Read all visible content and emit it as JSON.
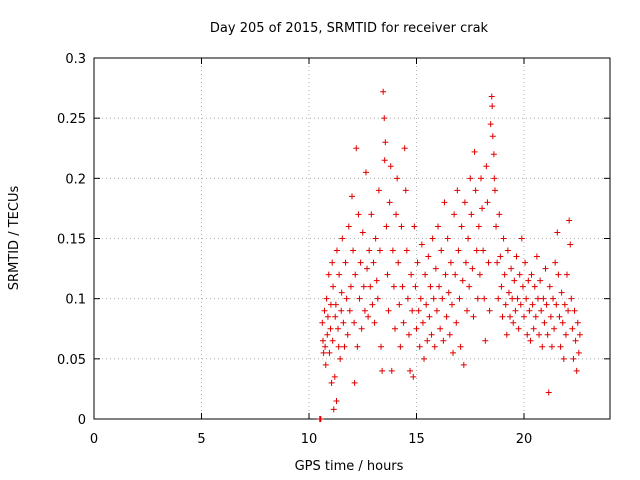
{
  "chart_data": {
    "type": "scatter",
    "title": "Day 205 of 2015, SRMTID for receiver crak",
    "xlabel": "GPS time / hours",
    "ylabel": "SRMTID / TECUs",
    "xlim": [
      0,
      24
    ],
    "ylim": [
      0,
      0.3
    ],
    "xticks": [
      0,
      5,
      10,
      15,
      20
    ],
    "yticks": [
      0,
      0.05,
      0.1,
      0.15,
      0.2,
      0.25,
      0.3
    ],
    "xtick_labels": [
      "0",
      "5",
      "10",
      "15",
      "20"
    ],
    "ytick_labels": [
      "0",
      "0.05",
      "0.1",
      "0.15",
      "0.2",
      "0.25",
      "0.3"
    ],
    "grid": true,
    "marker": "+",
    "color": "#e00000",
    "series": [
      {
        "points": [
          [
            10.5,
            0.0
          ],
          [
            10.52,
            0.0
          ],
          [
            10.55,
            0.0
          ],
          [
            10.62,
            0.08
          ],
          [
            10.65,
            0.065
          ],
          [
            10.68,
            0.055
          ],
          [
            10.72,
            0.09
          ],
          [
            10.75,
            0.06
          ],
          [
            10.78,
            0.045
          ],
          [
            10.82,
            0.1
          ],
          [
            10.85,
            0.07
          ],
          [
            10.88,
            0.085
          ],
          [
            10.92,
            0.12
          ],
          [
            10.95,
            0.055
          ],
          [
            11.0,
            0.075
          ],
          [
            11.02,
            0.095
          ],
          [
            11.05,
            0.03
          ],
          [
            11.08,
            0.13
          ],
          [
            11.1,
            0.065
          ],
          [
            11.12,
            0.11
          ],
          [
            11.15,
            0.008
          ],
          [
            11.2,
            0.035
          ],
          [
            11.22,
            0.085
          ],
          [
            11.25,
            0.095
          ],
          [
            11.28,
            0.015
          ],
          [
            11.3,
            0.14
          ],
          [
            11.35,
            0.075
          ],
          [
            11.38,
            0.06
          ],
          [
            11.4,
            0.12
          ],
          [
            11.45,
            0.05
          ],
          [
            11.5,
            0.09
          ],
          [
            11.52,
            0.105
          ],
          [
            11.55,
            0.15
          ],
          [
            11.6,
            0.08
          ],
          [
            11.65,
            0.06
          ],
          [
            11.7,
            0.13
          ],
          [
            11.75,
            0.1
          ],
          [
            11.8,
            0.07
          ],
          [
            11.85,
            0.16
          ],
          [
            11.9,
            0.09
          ],
          [
            11.95,
            0.11
          ],
          [
            12.0,
            0.185
          ],
          [
            12.05,
            0.14
          ],
          [
            12.1,
            0.08
          ],
          [
            12.12,
            0.03
          ],
          [
            12.15,
            0.12
          ],
          [
            12.2,
            0.225
          ],
          [
            12.25,
            0.06
          ],
          [
            12.3,
            0.17
          ],
          [
            12.35,
            0.1
          ],
          [
            12.4,
            0.13
          ],
          [
            12.45,
            0.075
          ],
          [
            12.5,
            0.155
          ],
          [
            12.55,
            0.11
          ],
          [
            12.6,
            0.09
          ],
          [
            12.65,
            0.205
          ],
          [
            12.7,
            0.125
          ],
          [
            12.75,
            0.085
          ],
          [
            12.8,
            0.14
          ],
          [
            12.85,
            0.11
          ],
          [
            12.9,
            0.17
          ],
          [
            12.95,
            0.095
          ],
          [
            13.0,
            0.13
          ],
          [
            13.05,
            0.08
          ],
          [
            13.1,
            0.15
          ],
          [
            13.15,
            0.115
          ],
          [
            13.2,
            0.1
          ],
          [
            13.25,
            0.19
          ],
          [
            13.3,
            0.14
          ],
          [
            13.35,
            0.06
          ],
          [
            13.4,
            0.04
          ],
          [
            13.45,
            0.272
          ],
          [
            13.5,
            0.25
          ],
          [
            13.52,
            0.215
          ],
          [
            13.55,
            0.23
          ],
          [
            13.6,
            0.16
          ],
          [
            13.65,
            0.12
          ],
          [
            13.7,
            0.09
          ],
          [
            13.75,
            0.18
          ],
          [
            13.8,
            0.21
          ],
          [
            13.85,
            0.04
          ],
          [
            13.9,
            0.14
          ],
          [
            13.95,
            0.11
          ],
          [
            14.0,
            0.075
          ],
          [
            14.05,
            0.17
          ],
          [
            14.1,
            0.2
          ],
          [
            14.15,
            0.13
          ],
          [
            14.2,
            0.095
          ],
          [
            14.25,
            0.06
          ],
          [
            14.3,
            0.16
          ],
          [
            14.35,
            0.11
          ],
          [
            14.4,
            0.08
          ],
          [
            14.45,
            0.225
          ],
          [
            14.5,
            0.19
          ],
          [
            14.55,
            0.14
          ],
          [
            14.6,
            0.1
          ],
          [
            14.65,
            0.07
          ],
          [
            14.7,
            0.04
          ],
          [
            14.75,
            0.12
          ],
          [
            14.8,
            0.09
          ],
          [
            14.85,
            0.035
          ],
          [
            14.9,
            0.16
          ],
          [
            14.95,
            0.11
          ],
          [
            15.0,
            0.075
          ],
          [
            15.05,
            0.13
          ],
          [
            15.1,
            0.09
          ],
          [
            15.15,
            0.06
          ],
          [
            15.2,
            0.1
          ],
          [
            15.25,
            0.145
          ],
          [
            15.3,
            0.08
          ],
          [
            15.35,
            0.05
          ],
          [
            15.4,
            0.12
          ],
          [
            15.45,
            0.095
          ],
          [
            15.5,
            0.065
          ],
          [
            15.55,
            0.135
          ],
          [
            15.6,
            0.085
          ],
          [
            15.65,
            0.11
          ],
          [
            15.7,
            0.07
          ],
          [
            15.75,
            0.15
          ],
          [
            15.8,
            0.1
          ],
          [
            15.85,
            0.06
          ],
          [
            15.9,
            0.125
          ],
          [
            15.95,
            0.09
          ],
          [
            16.0,
            0.16
          ],
          [
            16.05,
            0.11
          ],
          [
            16.1,
            0.075
          ],
          [
            16.15,
            0.14
          ],
          [
            16.2,
            0.1
          ],
          [
            16.25,
            0.065
          ],
          [
            16.3,
            0.18
          ],
          [
            16.35,
            0.12
          ],
          [
            16.4,
            0.085
          ],
          [
            16.45,
            0.15
          ],
          [
            16.5,
            0.105
          ],
          [
            16.55,
            0.07
          ],
          [
            16.6,
            0.13
          ],
          [
            16.65,
            0.095
          ],
          [
            16.7,
            0.055
          ],
          [
            16.75,
            0.17
          ],
          [
            16.8,
            0.12
          ],
          [
            16.85,
            0.08
          ],
          [
            16.9,
            0.19
          ],
          [
            16.95,
            0.14
          ],
          [
            17.0,
            0.1
          ],
          [
            17.05,
            0.06
          ],
          [
            17.1,
            0.16
          ],
          [
            17.15,
            0.115
          ],
          [
            17.2,
            0.045
          ],
          [
            17.25,
            0.18
          ],
          [
            17.3,
            0.13
          ],
          [
            17.35,
            0.09
          ],
          [
            17.4,
            0.15
          ],
          [
            17.45,
            0.11
          ],
          [
            17.5,
            0.2
          ],
          [
            17.55,
            0.17
          ],
          [
            17.6,
            0.125
          ],
          [
            17.65,
            0.085
          ],
          [
            17.7,
            0.222
          ],
          [
            17.75,
            0.19
          ],
          [
            17.8,
            0.14
          ],
          [
            17.85,
            0.1
          ],
          [
            17.9,
            0.16
          ],
          [
            17.95,
            0.12
          ],
          [
            18.0,
            0.2
          ],
          [
            18.05,
            0.175
          ],
          [
            18.1,
            0.14
          ],
          [
            18.15,
            0.1
          ],
          [
            18.2,
            0.065
          ],
          [
            18.25,
            0.21
          ],
          [
            18.3,
            0.18
          ],
          [
            18.35,
            0.13
          ],
          [
            18.4,
            0.09
          ],
          [
            18.45,
            0.245
          ],
          [
            18.5,
            0.268
          ],
          [
            18.52,
            0.26
          ],
          [
            18.55,
            0.235
          ],
          [
            18.6,
            0.22
          ],
          [
            18.62,
            0.2
          ],
          [
            18.65,
            0.19
          ],
          [
            18.7,
            0.16
          ],
          [
            18.75,
            0.13
          ],
          [
            18.8,
            0.1
          ],
          [
            18.85,
            0.17
          ],
          [
            18.9,
            0.135
          ],
          [
            18.95,
            0.11
          ],
          [
            19.0,
            0.085
          ],
          [
            19.05,
            0.15
          ],
          [
            19.1,
            0.12
          ],
          [
            19.15,
            0.095
          ],
          [
            19.2,
            0.07
          ],
          [
            19.25,
            0.14
          ],
          [
            19.3,
            0.105
          ],
          [
            19.35,
            0.085
          ],
          [
            19.4,
            0.125
          ],
          [
            19.45,
            0.1
          ],
          [
            19.5,
            0.08
          ],
          [
            19.55,
            0.115
          ],
          [
            19.6,
            0.09
          ],
          [
            19.65,
            0.135
          ],
          [
            19.7,
            0.1
          ],
          [
            19.75,
            0.075
          ],
          [
            19.8,
            0.12
          ],
          [
            19.85,
            0.095
          ],
          [
            19.9,
            0.15
          ],
          [
            19.95,
            0.11
          ],
          [
            20.0,
            0.085
          ],
          [
            20.05,
            0.13
          ],
          [
            20.1,
            0.1
          ],
          [
            20.15,
            0.07
          ],
          [
            20.2,
            0.115
          ],
          [
            20.25,
            0.09
          ],
          [
            20.3,
            0.065
          ],
          [
            20.35,
            0.12
          ],
          [
            20.4,
            0.095
          ],
          [
            20.45,
            0.075
          ],
          [
            20.5,
            0.11
          ],
          [
            20.55,
            0.085
          ],
          [
            20.6,
            0.135
          ],
          [
            20.65,
            0.1
          ],
          [
            20.7,
            0.07
          ],
          [
            20.75,
            0.115
          ],
          [
            20.8,
            0.09
          ],
          [
            20.85,
            0.06
          ],
          [
            20.9,
            0.1
          ],
          [
            20.95,
            0.08
          ],
          [
            21.0,
            0.125
          ],
          [
            21.05,
            0.095
          ],
          [
            21.1,
            0.07
          ],
          [
            21.15,
            0.022
          ],
          [
            21.2,
            0.11
          ],
          [
            21.25,
            0.085
          ],
          [
            21.3,
            0.06
          ],
          [
            21.35,
            0.1
          ],
          [
            21.4,
            0.075
          ],
          [
            21.45,
            0.13
          ],
          [
            21.5,
            0.095
          ],
          [
            21.55,
            0.155
          ],
          [
            21.6,
            0.12
          ],
          [
            21.65,
            0.085
          ],
          [
            21.7,
            0.06
          ],
          [
            21.75,
            0.105
          ],
          [
            21.8,
            0.08
          ],
          [
            21.85,
            0.05
          ],
          [
            21.9,
            0.095
          ],
          [
            21.95,
            0.07
          ],
          [
            22.0,
            0.12
          ],
          [
            22.05,
            0.09
          ],
          [
            22.1,
            0.165
          ],
          [
            22.15,
            0.145
          ],
          [
            22.2,
            0.1
          ],
          [
            22.25,
            0.075
          ],
          [
            22.3,
            0.05
          ],
          [
            22.35,
            0.09
          ],
          [
            22.4,
            0.065
          ],
          [
            22.45,
            0.04
          ],
          [
            22.5,
            0.08
          ],
          [
            22.55,
            0.055
          ],
          [
            22.6,
            0.07
          ]
        ]
      }
    ]
  }
}
